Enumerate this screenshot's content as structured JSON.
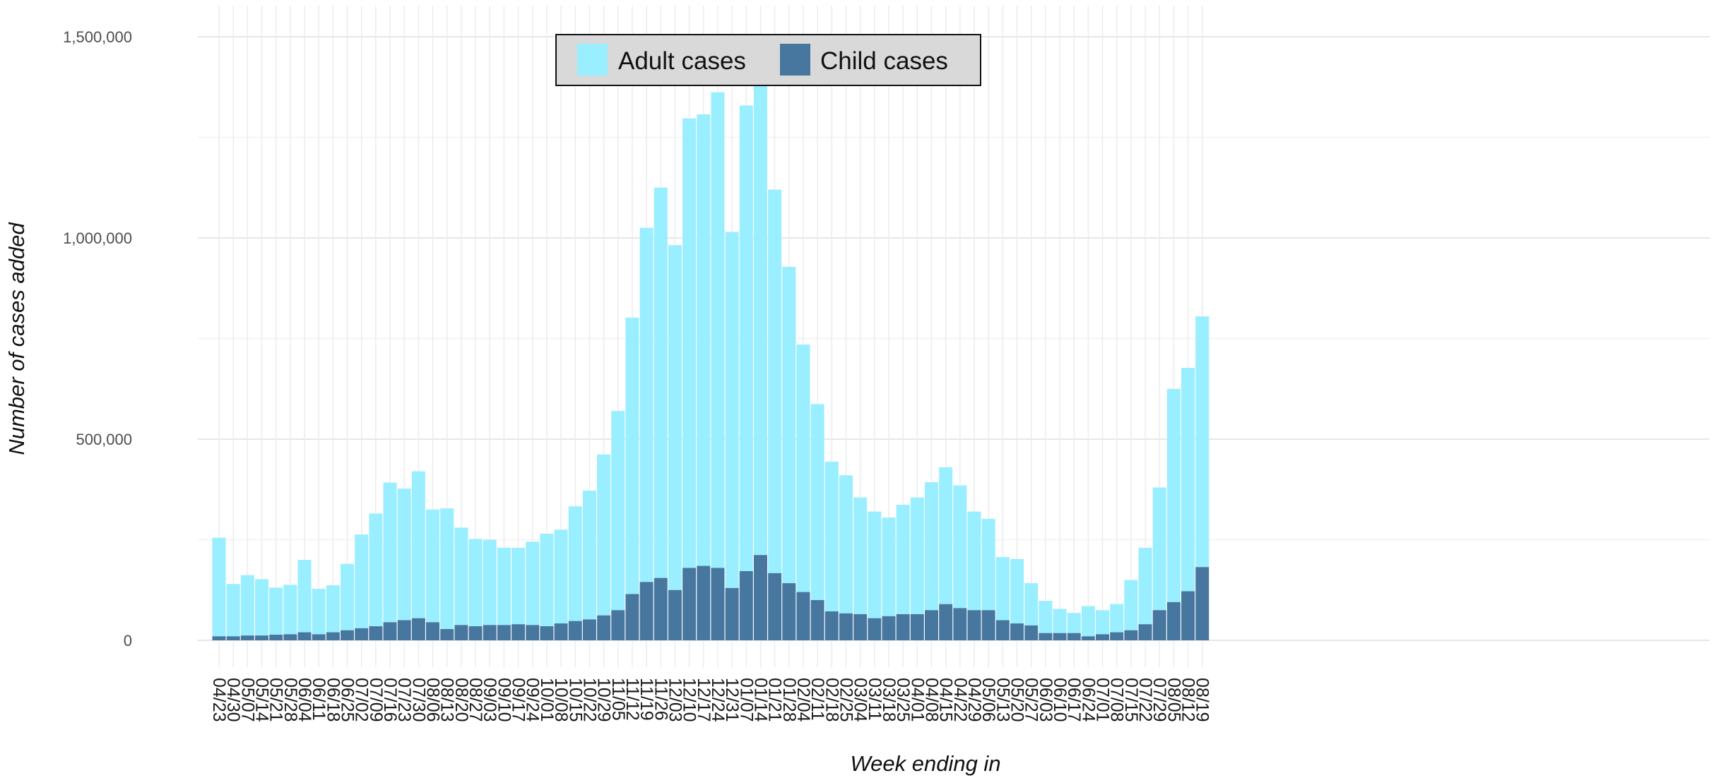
{
  "chart_data": {
    "type": "bar",
    "stacked": true,
    "title": "",
    "xlabel": "Week ending in",
    "ylabel": "Number of cases added",
    "ylim": [
      0,
      1500000
    ],
    "yticks": [
      0,
      500000,
      1000000,
      1500000
    ],
    "ytick_labels": [
      "0",
      "500,000",
      "1,000,000",
      "1,500,000"
    ],
    "grid": true,
    "legend_position": "top-center",
    "categories": [
      "04/23",
      "04/30",
      "05/07",
      "05/14",
      "05/21",
      "05/28",
      "06/04",
      "06/11",
      "06/18",
      "06/25",
      "07/02",
      "07/09",
      "07/16",
      "07/23",
      "07/30",
      "08/06",
      "08/13",
      "08/20",
      "08/27",
      "09/03",
      "09/10",
      "09/17",
      "09/24",
      "10/01",
      "10/08",
      "10/15",
      "10/22",
      "10/29",
      "11/05",
      "11/12",
      "11/19",
      "11/26",
      "12/03",
      "12/10",
      "12/17",
      "12/24",
      "12/31",
      "01/07",
      "01/14",
      "01/21",
      "01/28",
      "02/04",
      "02/11",
      "02/18",
      "02/25",
      "03/04",
      "03/11",
      "03/18",
      "03/25",
      "04/01",
      "04/08",
      "04/15",
      "04/22",
      "04/29",
      "05/06",
      "05/13",
      "05/20",
      "05/27",
      "06/03",
      "06/10",
      "06/17",
      "06/24",
      "07/01",
      "07/08",
      "07/15",
      "07/22",
      "07/29",
      "08/05",
      "08/12",
      "08/19"
    ],
    "series": [
      {
        "name": "Child cases",
        "color": "#47769e",
        "values": [
          10000,
          10000,
          12000,
          12000,
          14000,
          15000,
          20000,
          15000,
          20000,
          25000,
          30000,
          35000,
          45000,
          50000,
          55000,
          45000,
          28000,
          38000,
          35000,
          38000,
          38000,
          40000,
          38000,
          35000,
          42000,
          48000,
          52000,
          62000,
          75000,
          115000,
          145000,
          155000,
          125000,
          180000,
          185000,
          180000,
          130000,
          172000,
          212000,
          167000,
          142000,
          120000,
          100000,
          72000,
          67000,
          65000,
          55000,
          60000,
          65000,
          65000,
          75000,
          90000,
          80000,
          75000,
          75000,
          50000,
          42000,
          37000,
          18000,
          18000,
          18000,
          10000,
          15000,
          20000,
          25000,
          40000,
          75000,
          95000,
          122000,
          182000
        ]
      },
      {
        "name": "Adult cases",
        "color": "#99eeff",
        "values": [
          245000,
          130000,
          150000,
          140000,
          117000,
          123000,
          180000,
          113000,
          117000,
          165000,
          233000,
          280000,
          347000,
          327000,
          365000,
          280000,
          300000,
          242000,
          217000,
          212000,
          192000,
          190000,
          207000,
          230000,
          233000,
          285000,
          320000,
          400000,
          495000,
          687000,
          880000,
          970000,
          857000,
          1117000,
          1122000,
          1182000,
          885000,
          1157000,
          1243000,
          953000,
          786000,
          615000,
          487000,
          372000,
          343000,
          290000,
          265000,
          245000,
          272000,
          290000,
          318000,
          340000,
          305000,
          245000,
          227000,
          157000,
          160000,
          105000,
          80000,
          60000,
          50000,
          75000,
          60000,
          70000,
          125000,
          190000,
          305000,
          530000,
          555000,
          623000
        ]
      }
    ]
  },
  "legend": {
    "items": [
      {
        "label": "Adult cases",
        "color": "#99eeff"
      },
      {
        "label": "Child cases",
        "color": "#47769e"
      }
    ]
  }
}
